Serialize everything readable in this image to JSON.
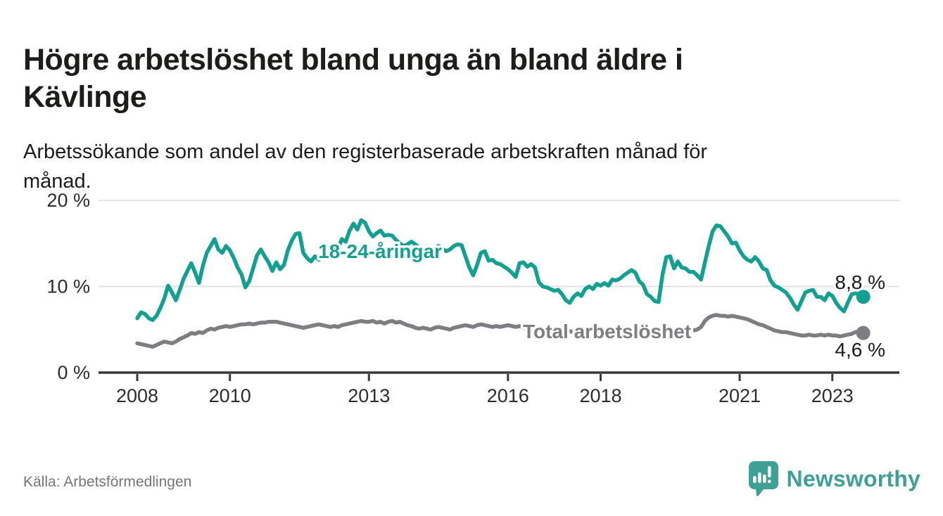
{
  "header": {
    "title": "Högre arbetslöshet bland unga än bland äldre i\nKävlinge",
    "subtitle": "Arbetssökande som andel av den registerbaserade arbetskraften månad för\nmånad."
  },
  "chart_data": {
    "type": "line",
    "unit": "%",
    "x_start": "2008-01",
    "x_end": "2023-09",
    "months_per_point": 1,
    "ylim": [
      0,
      21.5
    ],
    "grid": "horizontal",
    "yticks": [
      {
        "value": 0,
        "label": "0 %"
      },
      {
        "value": 10,
        "label": "10 %"
      },
      {
        "value": 20,
        "label": "20 %"
      }
    ],
    "xticks": [
      {
        "year": 2008,
        "label": "2008"
      },
      {
        "year": 2010,
        "label": "2010"
      },
      {
        "year": 2013,
        "label": "2013"
      },
      {
        "year": 2016,
        "label": "2016"
      },
      {
        "year": 2018,
        "label": "2018"
      },
      {
        "year": 2021,
        "label": "2021"
      },
      {
        "year": 2023,
        "label": "2023"
      }
    ],
    "series": [
      {
        "name": "18-24-åringar",
        "color": "#14a091",
        "end_label": "8,8 %",
        "end_value": 8.8,
        "values": [
          6.3,
          7.0,
          6.8,
          6.3,
          6.1,
          6.6,
          7.5,
          8.6,
          10.1,
          9.3,
          8.4,
          9.6,
          10.9,
          11.8,
          12.7,
          11.6,
          10.4,
          12.4,
          13.9,
          14.7,
          15.5,
          14.3,
          13.9,
          14.7,
          14.2,
          13.3,
          12.2,
          11.4,
          9.9,
          10.6,
          12.1,
          13.6,
          14.3,
          13.5,
          12.8,
          11.8,
          12.8,
          12.0,
          12.5,
          14.2,
          15.3,
          16.1,
          16.2,
          13.9,
          13.3,
          12.9,
          13.5,
          13.1,
          13.6,
          13.3,
          13.7,
          14.7,
          14.4,
          15.5,
          15.2,
          16.5,
          17.3,
          16.6,
          17.7,
          17.4,
          16.4,
          15.8,
          16.2,
          16.5,
          15.9,
          16.0,
          15.9,
          15.4,
          15.0,
          14.7,
          14.9,
          15.2,
          14.9,
          14.5,
          14.1,
          13.8,
          14.0,
          14.4,
          14.7,
          14.4,
          14.1,
          14.3,
          14.7,
          14.9,
          14.8,
          13.5,
          12.2,
          11.3,
          12.5,
          13.9,
          14.1,
          13.0,
          13.1,
          12.7,
          12.6,
          12.3,
          12.0,
          11.6,
          11.1,
          12.7,
          12.8,
          12.3,
          12.6,
          12.2,
          10.5,
          10.0,
          9.9,
          9.7,
          9.5,
          9.6,
          9.1,
          8.4,
          8.1,
          8.8,
          9.2,
          8.9,
          9.7,
          10.0,
          9.7,
          10.3,
          10.1,
          10.4,
          10.1,
          10.8,
          10.7,
          10.9,
          11.3,
          11.6,
          11.9,
          11.6,
          10.6,
          10.2,
          9.1,
          8.8,
          8.3,
          8.2,
          11.3,
          13.4,
          13.5,
          12.1,
          12.9,
          12.2,
          12.1,
          11.7,
          11.7,
          11.3,
          10.8,
          12.8,
          14.7,
          16.4,
          17.1,
          17.0,
          16.4,
          15.8,
          15.0,
          15.1,
          14.2,
          13.5,
          13.1,
          12.9,
          13.4,
          12.9,
          12.1,
          11.9,
          10.7,
          10.1,
          9.9,
          9.6,
          9.3,
          8.7,
          7.9,
          7.3,
          8.3,
          9.3,
          9.5,
          9.6,
          8.8,
          8.8,
          8.4,
          9.2,
          8.9,
          8.1,
          7.5,
          7.1,
          8.1,
          9.1,
          9.2,
          9.1,
          8.8
        ]
      },
      {
        "name": "Total arbetslöshet",
        "color": "#7d7d82",
        "end_label": "4,6 %",
        "end_value": 4.6,
        "values": [
          3.4,
          3.3,
          3.2,
          3.1,
          3.0,
          3.2,
          3.4,
          3.6,
          3.5,
          3.4,
          3.6,
          3.9,
          4.1,
          4.3,
          4.6,
          4.5,
          4.7,
          4.6,
          4.9,
          5.1,
          5.0,
          5.2,
          5.3,
          5.4,
          5.3,
          5.4,
          5.5,
          5.6,
          5.6,
          5.7,
          5.6,
          5.7,
          5.8,
          5.8,
          5.9,
          5.9,
          5.9,
          5.8,
          5.7,
          5.6,
          5.5,
          5.4,
          5.3,
          5.2,
          5.3,
          5.4,
          5.5,
          5.6,
          5.5,
          5.4,
          5.3,
          5.4,
          5.3,
          5.5,
          5.6,
          5.7,
          5.8,
          5.9,
          6.0,
          5.9,
          5.9,
          6.0,
          5.8,
          5.9,
          5.7,
          5.9,
          6.0,
          5.8,
          5.9,
          5.7,
          5.5,
          5.4,
          5.2,
          5.1,
          5.2,
          5.1,
          5.0,
          5.2,
          5.3,
          5.2,
          5.1,
          5.0,
          5.2,
          5.3,
          5.4,
          5.5,
          5.4,
          5.3,
          5.5,
          5.6,
          5.5,
          5.4,
          5.3,
          5.4,
          5.3,
          5.4,
          5.5,
          5.4,
          5.3,
          5.4,
          5.2,
          5.3,
          5.4,
          5.3,
          5.2,
          5.1,
          5.0,
          5.1,
          5.0,
          4.9,
          4.8,
          4.9,
          4.8,
          4.7,
          4.8,
          4.9,
          4.8,
          4.9,
          4.8,
          4.9,
          4.8,
          4.9,
          4.8,
          4.7,
          4.8,
          4.7,
          4.8,
          4.7,
          4.6,
          4.7,
          4.6,
          4.7,
          4.7,
          4.6,
          4.7,
          4.8,
          4.7,
          4.8,
          4.9,
          4.8,
          4.8,
          4.9,
          4.8,
          4.9,
          4.9,
          5.0,
          5.3,
          6.0,
          6.4,
          6.6,
          6.7,
          6.6,
          6.6,
          6.5,
          6.6,
          6.5,
          6.4,
          6.3,
          6.2,
          6.0,
          5.8,
          5.6,
          5.5,
          5.3,
          5.1,
          4.9,
          4.8,
          4.7,
          4.7,
          4.6,
          4.5,
          4.4,
          4.3,
          4.3,
          4.4,
          4.3,
          4.3,
          4.4,
          4.3,
          4.4,
          4.3,
          4.3,
          4.2,
          4.3,
          4.4,
          4.5,
          4.7,
          4.8,
          4.6
        ]
      }
    ],
    "colors": {
      "axis": "#3a3a3a",
      "grid": "#e2e2e2",
      "tick_text": "#2d2d2d",
      "value_label_text": "#1a1a1a"
    }
  },
  "footer": {
    "source": "Källa: Arbetsförmedlingen",
    "logo_text": "Newsworthy",
    "logo_color": "#3fa096"
  }
}
